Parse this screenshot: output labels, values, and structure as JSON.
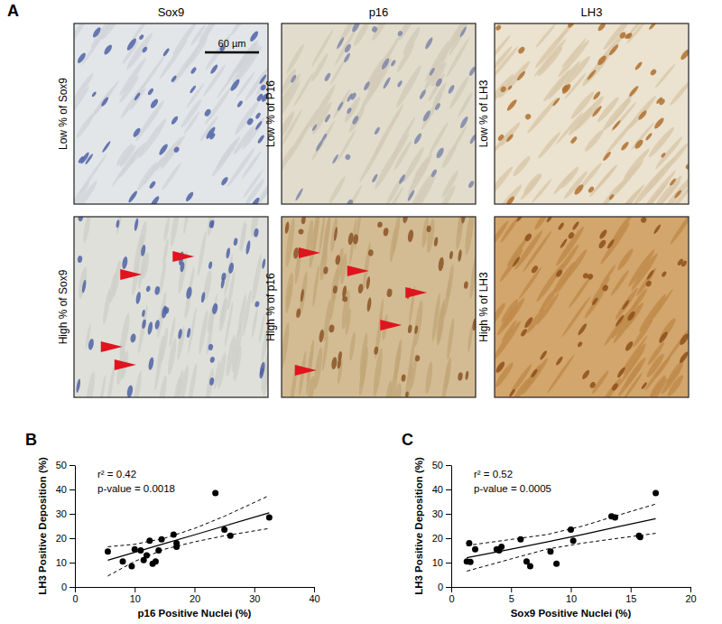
{
  "panel_a": {
    "label": "A",
    "columns": [
      "Sox9",
      "p16",
      "LH3"
    ],
    "row_labels": [
      [
        "Low % of Sox9",
        "Low % of P16",
        "Low % of LH3"
      ],
      [
        "High % of Sox9",
        "High % of p16",
        "High % of LH3"
      ]
    ],
    "scale_bar": "60 µm"
  },
  "chart_data": [
    {
      "type": "scatter",
      "title": "B",
      "x_label": "p16 Positive Nuclei (%)",
      "y_label": "LH3 Positive Deposition (%)",
      "annotations": [
        "r² = 0.42",
        "p-value = 0.0018"
      ],
      "x": [
        5.5,
        8,
        9.5,
        10,
        11,
        11.5,
        12,
        12.5,
        13,
        13.5,
        14,
        14.5,
        16.5,
        17,
        17,
        23.5,
        25,
        26,
        32.5
      ],
      "values": [
        14.5,
        10.5,
        8.5,
        15.5,
        15,
        11,
        13,
        19,
        9.5,
        10.5,
        15,
        19.5,
        21.5,
        16.5,
        18,
        38.5,
        23.5,
        21,
        28.5
      ],
      "fit": {
        "x": [
          5.5,
          10,
          15,
          20,
          25,
          32.5
        ],
        "values": [
          11,
          14.2,
          17.8,
          21.4,
          25,
          30.4
        ],
        "lower": [
          4.5,
          10.5,
          15.5,
          18.5,
          21,
          24
        ],
        "upper": [
          16.5,
          17.5,
          20,
          24,
          29,
          37.5
        ]
      },
      "xlim": [
        0,
        40
      ],
      "xticks": [
        0,
        10,
        20,
        30,
        40
      ],
      "ylim": [
        0,
        50
      ],
      "yticks": [
        0,
        10,
        20,
        30,
        40,
        50
      ],
      "color": "#000000",
      "marker": "circle",
      "grid": false
    },
    {
      "type": "scatter",
      "title": "C",
      "x_label": "Sox9 Positive Nuclei (%)",
      "y_label": "LH3 Positive Deposition (%)",
      "annotations": [
        "r² = 0.52",
        "p-value = 0.0005"
      ],
      "x": [
        1.3,
        1.6,
        1.5,
        2.0,
        3.8,
        4.0,
        4.2,
        5.8,
        6.3,
        6.6,
        8.3,
        8.8,
        10,
        10.2,
        13.4,
        13.7,
        15.7,
        15.8,
        17.1
      ],
      "values": [
        10.5,
        10.3,
        18,
        15.5,
        15.5,
        15,
        16.5,
        19.5,
        10.5,
        8.5,
        14.5,
        9.5,
        23.5,
        19,
        29,
        28.5,
        21,
        20.5,
        38.5
      ],
      "fit": {
        "x": [
          1.3,
          5,
          8,
          11,
          14,
          17.1
        ],
        "values": [
          12,
          15.5,
          18.5,
          21.5,
          24.8,
          28
        ],
        "lower": [
          6.5,
          11.5,
          15.5,
          18,
          20,
          22
        ],
        "upper": [
          17,
          19.5,
          21.5,
          25,
          29.5,
          34
        ]
      },
      "xlim": [
        0,
        20
      ],
      "xticks": [
        0,
        5,
        10,
        15,
        20
      ],
      "ylim": [
        0,
        50
      ],
      "yticks": [
        0,
        10,
        20,
        30,
        40,
        50
      ],
      "color": "#000000",
      "marker": "circle",
      "grid": false
    }
  ]
}
